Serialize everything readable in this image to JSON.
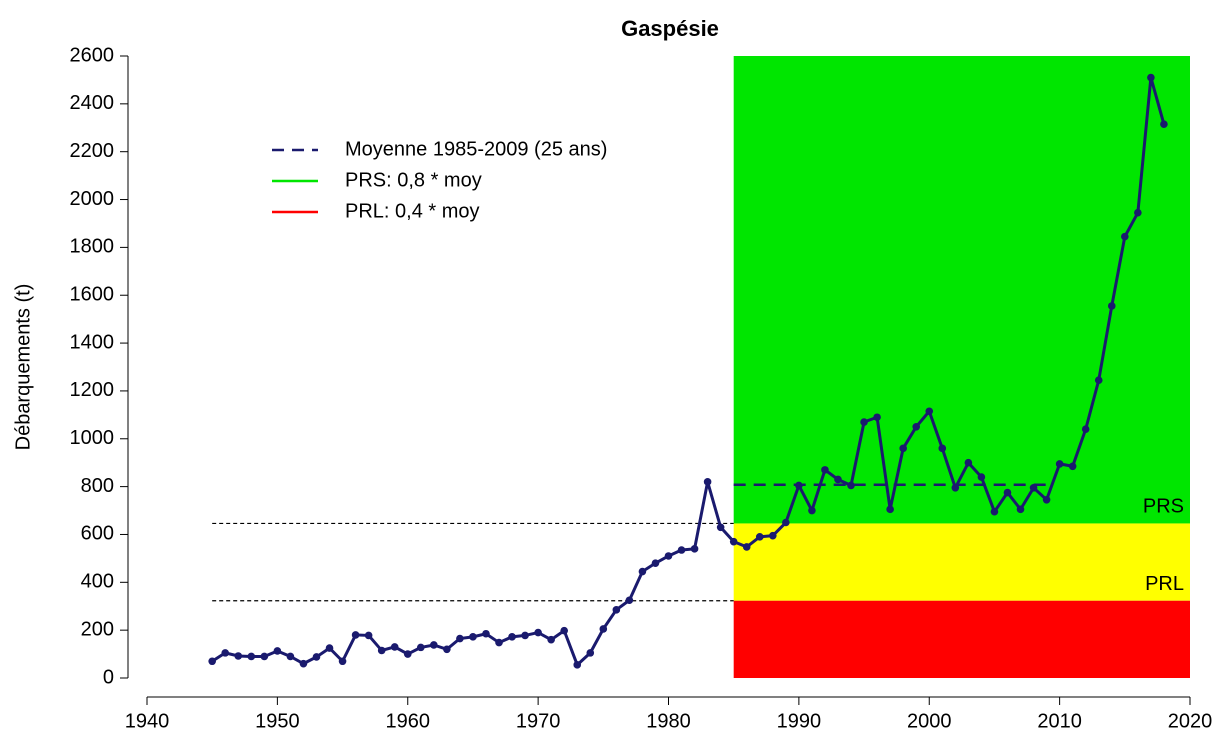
{
  "chart_data": {
    "type": "line",
    "title": "Gaspésie",
    "y_label": "Débarquements (t)",
    "x": [
      1945,
      1946,
      1947,
      1948,
      1949,
      1950,
      1951,
      1952,
      1953,
      1954,
      1955,
      1956,
      1957,
      1958,
      1959,
      1960,
      1961,
      1962,
      1963,
      1964,
      1965,
      1966,
      1967,
      1968,
      1969,
      1970,
      1971,
      1972,
      1973,
      1974,
      1975,
      1976,
      1977,
      1978,
      1979,
      1980,
      1981,
      1982,
      1983,
      1984,
      1985,
      1986,
      1987,
      1988,
      1989,
      1990,
      1991,
      1992,
      1993,
      1994,
      1995,
      1996,
      1997,
      1998,
      1999,
      2000,
      2001,
      2002,
      2003,
      2004,
      2005,
      2006,
      2007,
      2008,
      2009,
      2010,
      2011,
      2012,
      2013,
      2014,
      2015,
      2016,
      2017,
      2018
    ],
    "series": [
      {
        "color": "#1a1a6e",
        "values": [
          70,
          105,
          92,
          90,
          90,
          113,
          90,
          60,
          88,
          125,
          70,
          180,
          178,
          115,
          130,
          100,
          128,
          138,
          120,
          165,
          172,
          185,
          148,
          172,
          178,
          190,
          160,
          198,
          55,
          105,
          205,
          285,
          325,
          445,
          480,
          510,
          535,
          540,
          820,
          630,
          570,
          548,
          590,
          595,
          650,
          805,
          700,
          870,
          830,
          805,
          1070,
          1090,
          705,
          960,
          1050,
          1115,
          960,
          795,
          900,
          840,
          695,
          775,
          705,
          795,
          745,
          895,
          885,
          1040,
          1245,
          1555,
          1845,
          1945,
          2510,
          2315
        ]
      }
    ],
    "reference_lines": [
      {
        "name": "Moyenne 1985-2009 (25 ans)",
        "value": 808,
        "color": "#1a1a6e",
        "xlim": [
          1985,
          2009
        ]
      },
      {
        "name": "PRS: 0,8 * moy",
        "value": 646,
        "color": "#00e600",
        "label": "PRS"
      },
      {
        "name": "PRL: 0,4 * moy",
        "value": 323,
        "color": "#ff0000",
        "label": "PRL"
      }
    ],
    "zone_start": 1985,
    "zone_mid_color": "#ffff00",
    "xlim": [
      1940,
      2020
    ],
    "xticks": [
      1940,
      1950,
      1960,
      1970,
      1980,
      1990,
      2000,
      2010,
      2020
    ],
    "ylim": [
      0,
      2600
    ],
    "yticks": [
      0,
      200,
      400,
      600,
      800,
      1000,
      1200,
      1400,
      1600,
      1800,
      2000,
      2200,
      2400,
      2600
    ]
  }
}
